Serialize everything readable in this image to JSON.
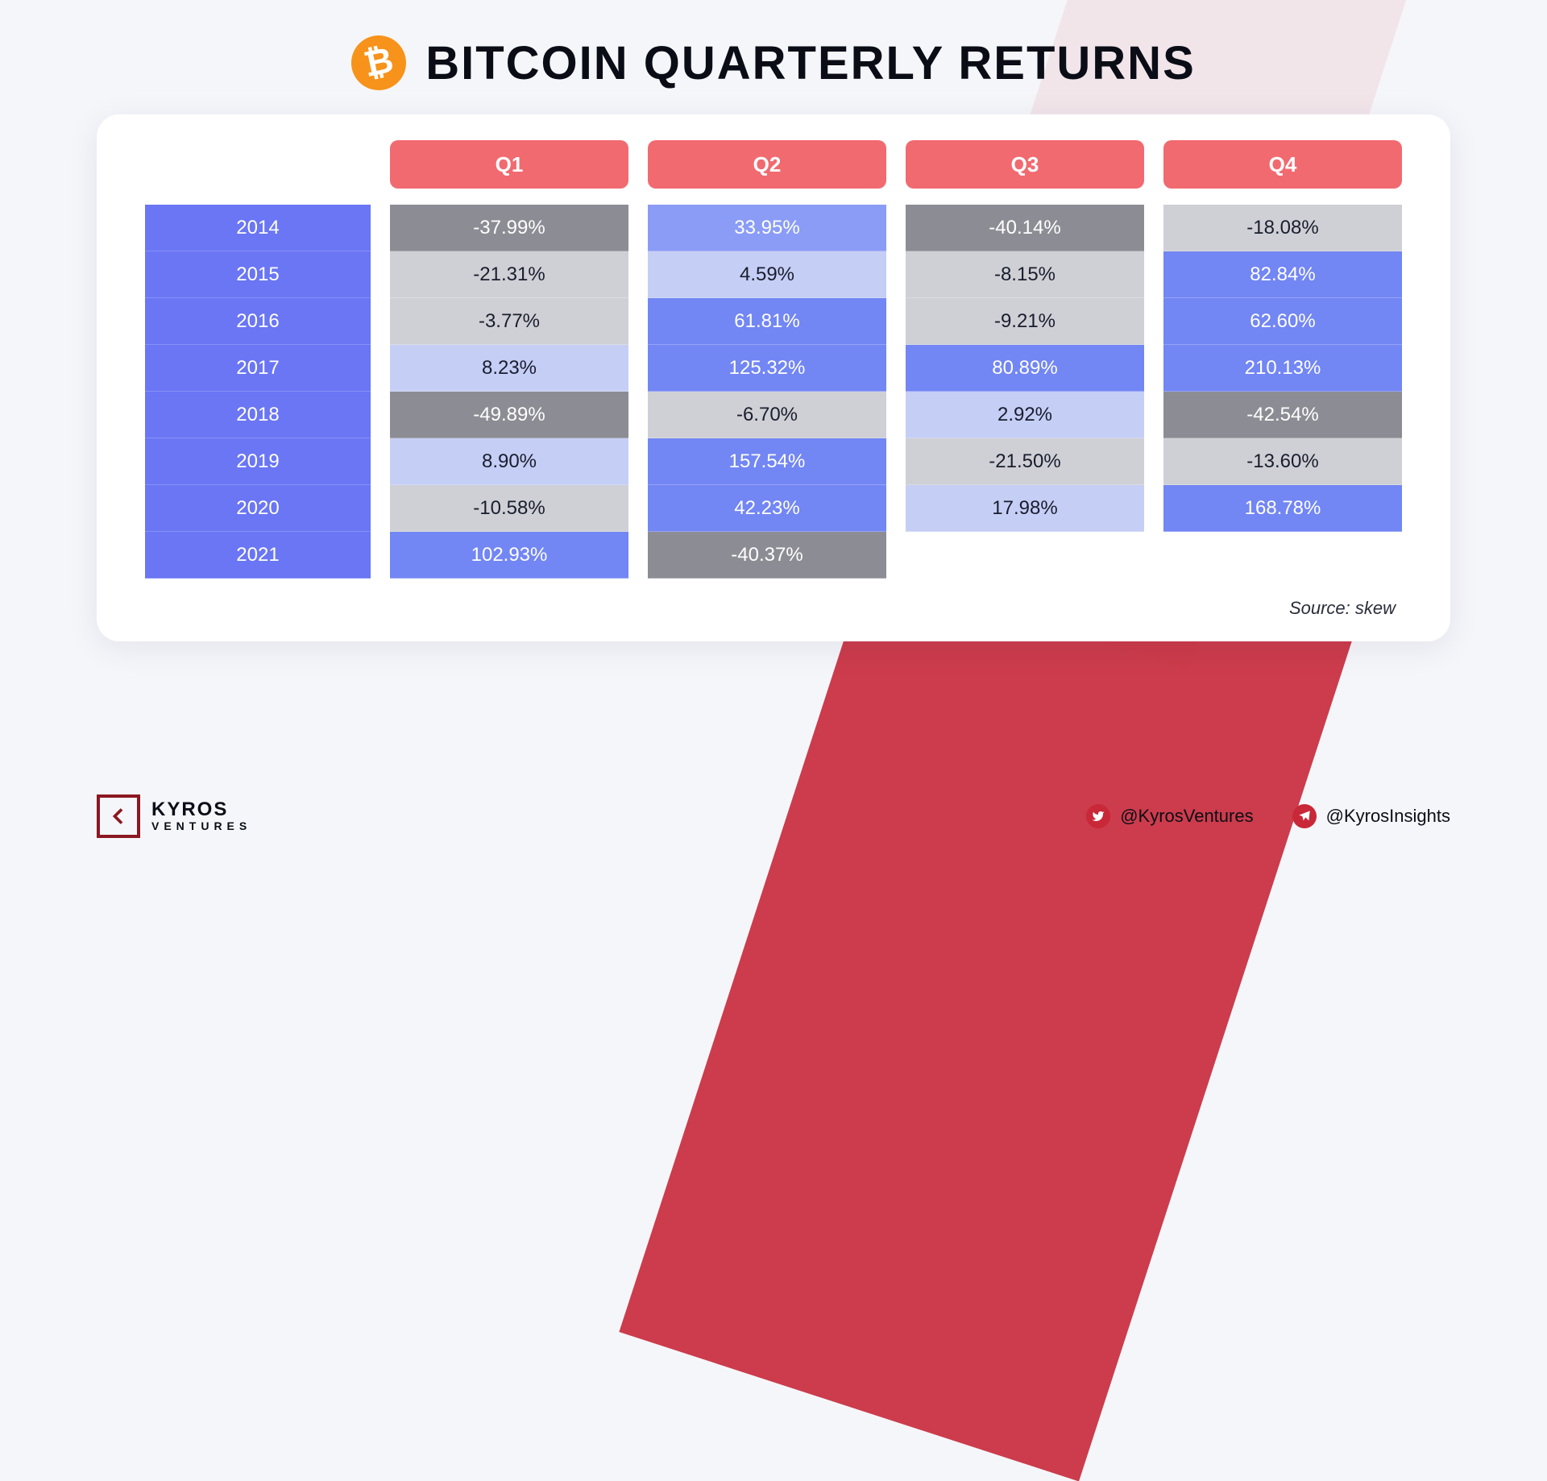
{
  "title": "BITCOIN QUARTERLY RETURNS",
  "icon_label": "₿",
  "source_label": "Source: skew",
  "colors": {
    "page_bg": "#f5f6fa",
    "card_bg": "#ffffff",
    "accent_red": "#c82838",
    "btc_orange": "#f7931a",
    "quarter_header_bg": "#f16a70",
    "year_bg": "#6a76f4",
    "scale": {
      "deep_negative": "#8c8d94",
      "negative": "#cfd0d5",
      "faint_positive": "#c5cef5",
      "mid_positive": "#8a9cf6",
      "strong_positive": "#7286f4"
    }
  },
  "typography": {
    "title_fontsize": 58,
    "title_weight": 900,
    "header_fontsize": 26,
    "cell_fontsize": 24
  },
  "table": {
    "type": "heatmap-table",
    "columns": [
      "Q1",
      "Q2",
      "Q3",
      "Q4"
    ],
    "years": [
      "2014",
      "2015",
      "2016",
      "2017",
      "2018",
      "2019",
      "2020",
      "2021"
    ],
    "cells": [
      [
        {
          "v": "-37.99%",
          "c": "v-deepneg"
        },
        {
          "v": "33.95%",
          "c": "v-mid"
        },
        {
          "v": "-40.14%",
          "c": "v-deepneg"
        },
        {
          "v": "-18.08%",
          "c": "v-neg"
        }
      ],
      [
        {
          "v": "-21.31%",
          "c": "v-neg"
        },
        {
          "v": "4.59%",
          "c": "v-faint"
        },
        {
          "v": "-8.15%",
          "c": "v-neg"
        },
        {
          "v": "82.84%",
          "c": "v-strong"
        }
      ],
      [
        {
          "v": "-3.77%",
          "c": "v-neg"
        },
        {
          "v": "61.81%",
          "c": "v-strong"
        },
        {
          "v": "-9.21%",
          "c": "v-neg"
        },
        {
          "v": "62.60%",
          "c": "v-strong"
        }
      ],
      [
        {
          "v": "8.23%",
          "c": "v-faint"
        },
        {
          "v": "125.32%",
          "c": "v-strong"
        },
        {
          "v": "80.89%",
          "c": "v-strong"
        },
        {
          "v": "210.13%",
          "c": "v-strong"
        }
      ],
      [
        {
          "v": "-49.89%",
          "c": "v-deepneg"
        },
        {
          "v": "-6.70%",
          "c": "v-neg"
        },
        {
          "v": "2.92%",
          "c": "v-faint"
        },
        {
          "v": "-42.54%",
          "c": "v-deepneg"
        }
      ],
      [
        {
          "v": "8.90%",
          "c": "v-faint"
        },
        {
          "v": "157.54%",
          "c": "v-strong"
        },
        {
          "v": "-21.50%",
          "c": "v-neg"
        },
        {
          "v": "-13.60%",
          "c": "v-neg"
        }
      ],
      [
        {
          "v": "-10.58%",
          "c": "v-neg"
        },
        {
          "v": "42.23%",
          "c": "v-strong"
        },
        {
          "v": "17.98%",
          "c": "v-faint"
        },
        {
          "v": "168.78%",
          "c": "v-strong"
        }
      ],
      [
        {
          "v": "102.93%",
          "c": "v-strong"
        },
        {
          "v": "-40.37%",
          "c": "v-deepneg"
        },
        null,
        null
      ]
    ]
  },
  "footer": {
    "brand_top": "KYROS",
    "brand_bottom": "VENTURES",
    "twitter": "@KyrosVentures",
    "telegram": "@KyrosInsights"
  }
}
